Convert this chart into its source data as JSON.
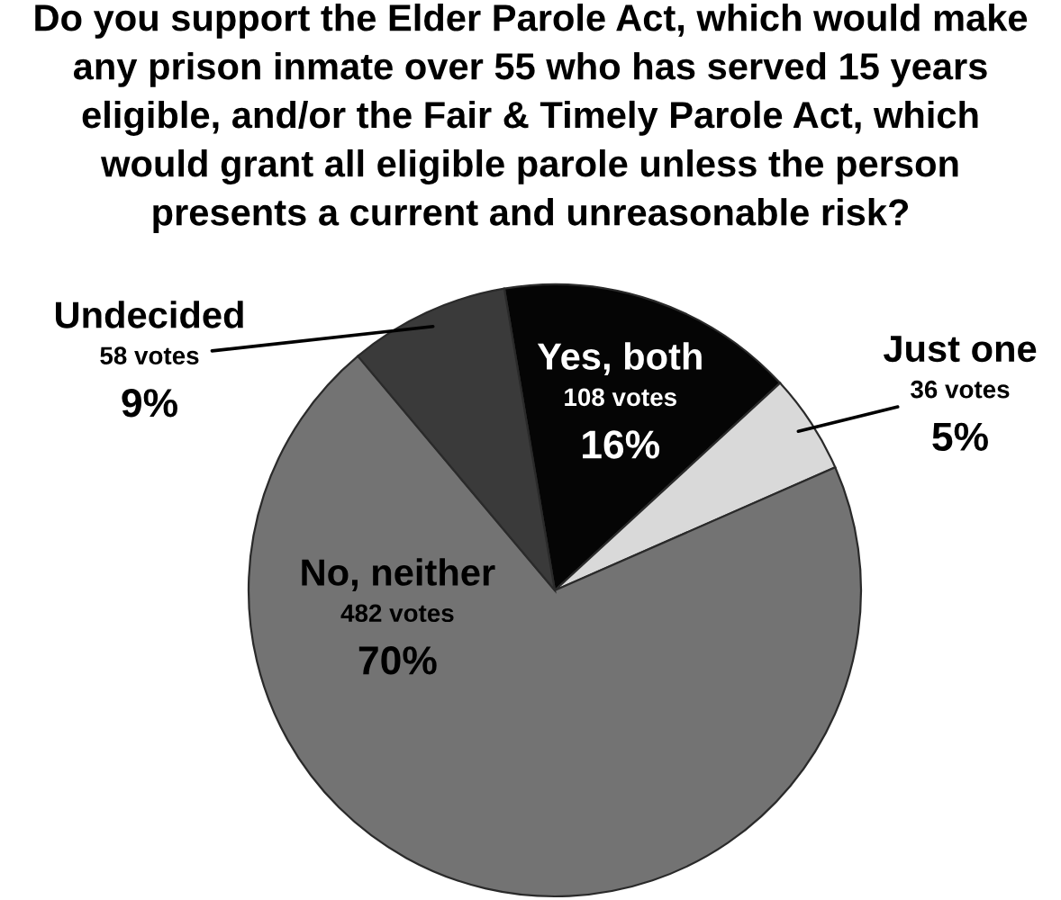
{
  "chart_data": {
    "type": "pie",
    "title": "Do you support the Elder Parole Act, which would make\nany prison inmate over 55 who has served 15 years\neligible, and/or the Fair & Timely Parole Act, which\nwould grant all eligible parole unless the person\npresents a current and unreasonable risk?",
    "categories": [
      "Yes, both",
      "Just one",
      "No, neither",
      "Undecided"
    ],
    "values": [
      108,
      36,
      482,
      58
    ],
    "colors": [
      "#050505",
      "#d9d9d9",
      "#737373",
      "#3a3a3a"
    ],
    "value_labels": [
      "108 votes\n16%",
      "36 votes\n5%",
      "482 votes\n70%",
      "58 votes\n9%"
    ]
  }
}
